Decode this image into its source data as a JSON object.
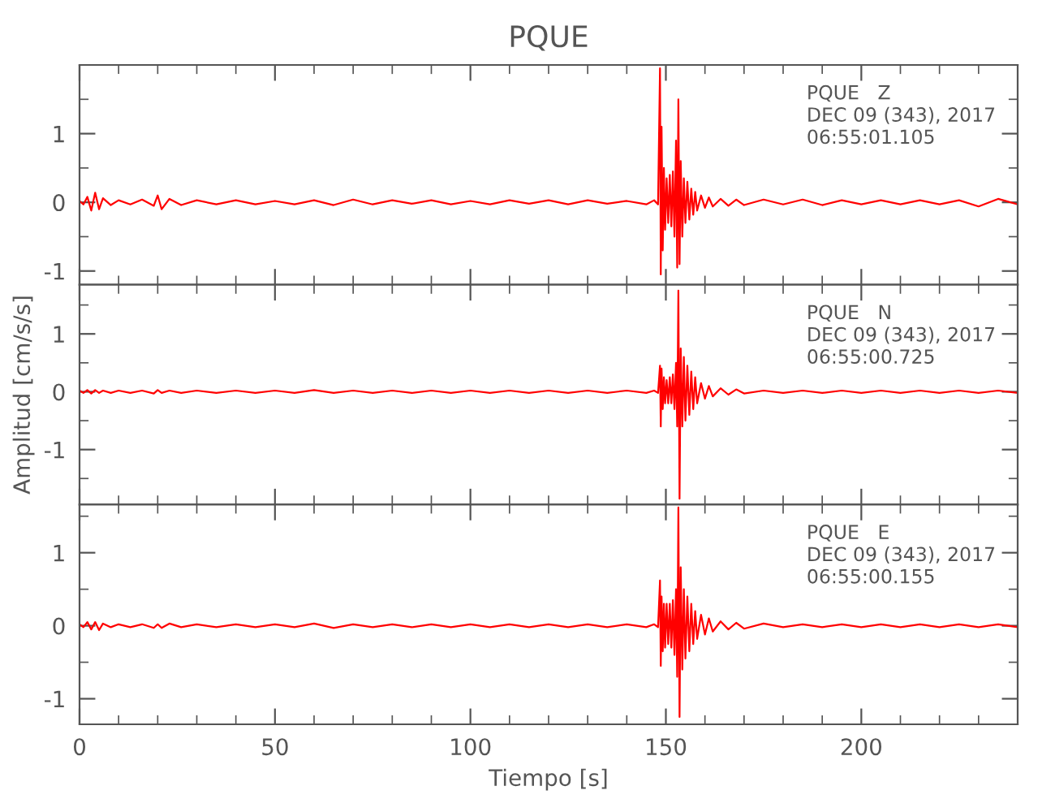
{
  "chart_data": [
    {
      "type": "line",
      "title": "PQUE",
      "annotations": [
        "PQUE   Z\nDEC 09 (343), 2017\n06:55:01.105"
      ],
      "xlim": [
        0,
        240
      ],
      "xticks": [
        0,
        50,
        100,
        150,
        200
      ],
      "ylim": [
        -1.2,
        2.0
      ],
      "yticks": [
        -1,
        0,
        1
      ],
      "tick_labels": "y",
      "grid": false,
      "legend": false,
      "x": [
        0,
        1,
        2,
        3,
        4,
        5,
        6,
        8,
        10,
        13,
        16,
        19,
        20,
        21,
        23,
        26,
        30,
        35,
        40,
        45,
        50,
        55,
        60,
        65,
        70,
        75,
        80,
        85,
        90,
        95,
        100,
        105,
        110,
        115,
        120,
        125,
        130,
        135,
        140,
        145,
        147,
        148,
        148.5,
        148.7,
        148.9,
        149.2,
        149.5,
        149.8,
        150.2,
        150.6,
        151,
        151.4,
        151.8,
        152.2,
        152.6,
        152.9,
        153.2,
        153.5,
        153.8,
        154.2,
        154.6,
        155,
        155.5,
        156,
        156.5,
        157,
        157.5,
        158,
        159,
        160,
        161,
        162,
        164,
        166,
        168,
        170,
        175,
        180,
        185,
        190,
        195,
        200,
        205,
        210,
        215,
        220,
        225,
        230,
        235,
        240
      ],
      "series": [
        {
          "color": "#ff0000",
          "values": [
            0.02,
            -0.03,
            0.08,
            -0.12,
            0.14,
            -0.1,
            0.06,
            -0.04,
            0.03,
            -0.03,
            0.04,
            -0.05,
            0.1,
            -0.1,
            0.05,
            -0.04,
            0.03,
            -0.03,
            0.03,
            -0.03,
            0.02,
            -0.03,
            0.03,
            -0.04,
            0.04,
            -0.03,
            0.03,
            -0.02,
            0.03,
            -0.03,
            0.02,
            -0.03,
            0.03,
            -0.02,
            0.03,
            -0.03,
            0.03,
            -0.02,
            0.02,
            -0.03,
            0.03,
            -0.03,
            1.95,
            -1.05,
            1.1,
            -0.7,
            0.5,
            -0.4,
            0.35,
            -0.3,
            0.4,
            -0.35,
            0.45,
            -0.5,
            0.9,
            -0.95,
            1.5,
            -0.9,
            0.6,
            -0.5,
            0.35,
            -0.3,
            0.3,
            -0.25,
            0.2,
            -0.18,
            0.15,
            -0.12,
            0.1,
            -0.08,
            0.07,
            -0.06,
            0.05,
            -0.05,
            0.04,
            -0.04,
            0.04,
            -0.03,
            0.04,
            -0.04,
            0.03,
            -0.03,
            0.03,
            -0.03,
            0.03,
            -0.03,
            0.03,
            -0.06,
            0.05,
            -0.03
          ]
        }
      ]
    },
    {
      "type": "line",
      "ylabel": "Amplitud [cm/s/s]",
      "annotations": [
        "PQUE   N\nDEC 09 (343), 2017\n06:55:00.725"
      ],
      "xlim": [
        0,
        240
      ],
      "xticks": [
        0,
        50,
        100,
        150,
        200
      ],
      "ylim": [
        -1.95,
        1.85
      ],
      "yticks": [
        -1,
        0,
        1
      ],
      "tick_labels": "y",
      "grid": false,
      "legend": false,
      "x": [
        0,
        1,
        2,
        3,
        4,
        5,
        6,
        8,
        10,
        13,
        16,
        19,
        20,
        21,
        23,
        26,
        30,
        35,
        40,
        45,
        50,
        55,
        60,
        65,
        70,
        75,
        80,
        85,
        90,
        95,
        100,
        105,
        110,
        115,
        120,
        125,
        130,
        135,
        140,
        145,
        147,
        148,
        148.5,
        148.7,
        148.9,
        149.2,
        149.5,
        149.8,
        150.2,
        150.6,
        151,
        151.4,
        151.8,
        152.2,
        152.6,
        152.9,
        153.2,
        153.5,
        153.8,
        154.2,
        154.6,
        155,
        155.5,
        156,
        156.5,
        157,
        157.5,
        158,
        159,
        160,
        161,
        162,
        164,
        166,
        168,
        170,
        175,
        180,
        185,
        190,
        195,
        200,
        205,
        210,
        215,
        220,
        225,
        230,
        235,
        240
      ],
      "series": [
        {
          "color": "#ff0000",
          "values": [
            0.02,
            -0.02,
            0.03,
            -0.03,
            0.03,
            -0.02,
            0.02,
            -0.02,
            0.02,
            -0.02,
            0.02,
            -0.03,
            0.03,
            -0.02,
            0.02,
            -0.02,
            0.02,
            -0.02,
            0.02,
            -0.02,
            0.02,
            -0.02,
            0.03,
            -0.02,
            0.02,
            -0.02,
            0.02,
            -0.02,
            0.02,
            -0.02,
            0.02,
            -0.02,
            0.02,
            -0.02,
            0.02,
            -0.02,
            0.02,
            -0.02,
            0.02,
            -0.02,
            0.02,
            -0.02,
            0.45,
            -0.6,
            0.4,
            -0.3,
            0.25,
            -0.2,
            0.2,
            -0.2,
            0.25,
            -0.2,
            0.3,
            -0.3,
            0.5,
            -0.6,
            1.75,
            -1.85,
            0.75,
            -0.6,
            0.6,
            -0.5,
            0.45,
            -0.4,
            0.35,
            -0.3,
            0.25,
            -0.2,
            0.15,
            -0.12,
            0.1,
            -0.08,
            0.06,
            -0.05,
            0.04,
            -0.03,
            0.02,
            -0.02,
            0.02,
            -0.02,
            0.02,
            -0.02,
            0.02,
            -0.02,
            0.02,
            -0.02,
            0.02,
            -0.02,
            0.02,
            -0.02
          ]
        }
      ]
    },
    {
      "type": "line",
      "xlabel": "Tiempo [s]",
      "annotations": [
        "PQUE   E\nDEC 09 (343), 2017\n06:55:00.155"
      ],
      "xlim": [
        0,
        240
      ],
      "xticks": [
        0,
        50,
        100,
        150,
        200
      ],
      "ylim": [
        -1.35,
        1.66
      ],
      "yticks": [
        -1,
        0,
        1
      ],
      "grid": false,
      "legend": false,
      "x": [
        0,
        1,
        2,
        3,
        4,
        5,
        6,
        8,
        10,
        13,
        16,
        19,
        20,
        21,
        23,
        26,
        30,
        35,
        40,
        45,
        50,
        55,
        60,
        65,
        70,
        75,
        80,
        85,
        90,
        95,
        100,
        105,
        110,
        115,
        120,
        125,
        130,
        135,
        140,
        145,
        147,
        148,
        148.5,
        148.7,
        148.9,
        149.2,
        149.5,
        149.8,
        150.2,
        150.6,
        151,
        151.4,
        151.8,
        152.2,
        152.6,
        152.9,
        153.2,
        153.5,
        153.8,
        154.2,
        154.6,
        155,
        155.5,
        156,
        156.5,
        157,
        157.5,
        158,
        159,
        160,
        161,
        162,
        164,
        166,
        168,
        170,
        175,
        180,
        185,
        190,
        195,
        200,
        205,
        210,
        215,
        220,
        225,
        230,
        235,
        240
      ],
      "series": [
        {
          "color": "#ff0000",
          "values": [
            0.02,
            -0.02,
            0.05,
            -0.05,
            0.05,
            -0.06,
            0.03,
            -0.02,
            0.02,
            -0.02,
            0.02,
            -0.03,
            0.02,
            -0.03,
            0.03,
            -0.02,
            0.02,
            -0.02,
            0.02,
            -0.02,
            0.02,
            -0.02,
            0.03,
            -0.03,
            0.02,
            -0.02,
            0.02,
            -0.02,
            0.02,
            -0.02,
            0.02,
            -0.02,
            0.02,
            -0.02,
            0.02,
            -0.02,
            0.02,
            -0.02,
            0.02,
            -0.02,
            0.02,
            -0.02,
            0.62,
            -0.55,
            0.4,
            -0.35,
            0.3,
            -0.3,
            0.3,
            -0.25,
            0.3,
            -0.3,
            0.35,
            -0.4,
            0.5,
            -0.7,
            1.62,
            -1.25,
            0.8,
            -0.6,
            0.5,
            -0.45,
            0.4,
            -0.35,
            0.3,
            -0.25,
            0.2,
            -0.18,
            0.15,
            -0.12,
            0.1,
            -0.08,
            0.06,
            -0.05,
            0.04,
            -0.04,
            0.03,
            -0.02,
            0.02,
            -0.02,
            0.02,
            -0.02,
            0.02,
            -0.02,
            0.02,
            -0.02,
            0.02,
            -0.02,
            0.02,
            -0.02
          ]
        }
      ]
    }
  ]
}
